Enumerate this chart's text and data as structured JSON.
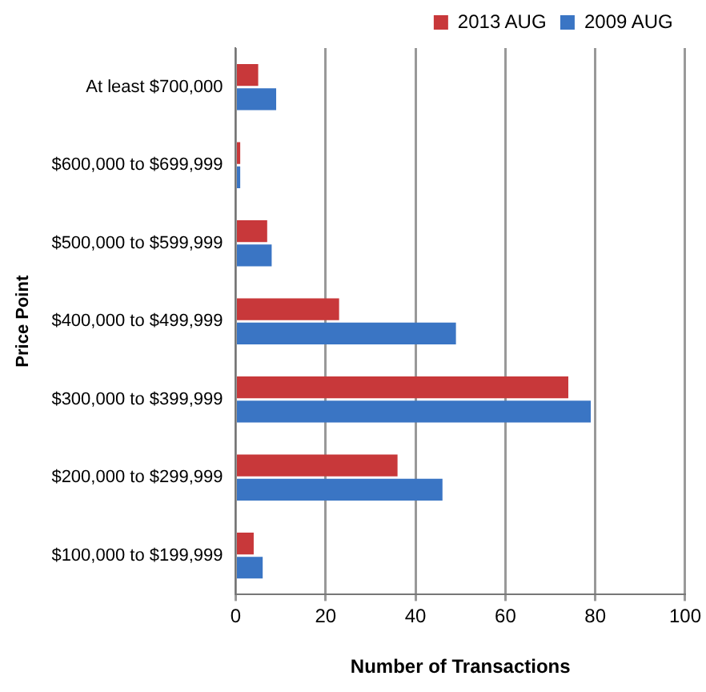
{
  "chart_data": {
    "type": "bar",
    "orientation": "horizontal",
    "categories": [
      "At least $700,000",
      "$600,000 to $699,999",
      "$500,000 to $599,999",
      "$400,000 to $499,999",
      "$300,000 to $399,999",
      "$200,000 to $299,999",
      "$100,000 to $199,999"
    ],
    "series": [
      {
        "name": "2013 AUG",
        "color": "#c8383a",
        "values": [
          5,
          1,
          7,
          23,
          74,
          36,
          4
        ]
      },
      {
        "name": "2009 AUG",
        "color": "#3a75c4",
        "values": [
          9,
          1,
          8,
          49,
          79,
          46,
          6
        ]
      }
    ],
    "xlabel": "Number of Transactions",
    "ylabel": "Price Point",
    "xlim": [
      0,
      100
    ],
    "xticks": [
      0,
      20,
      40,
      60,
      80,
      100
    ],
    "grid": "x",
    "legend": "top right"
  }
}
